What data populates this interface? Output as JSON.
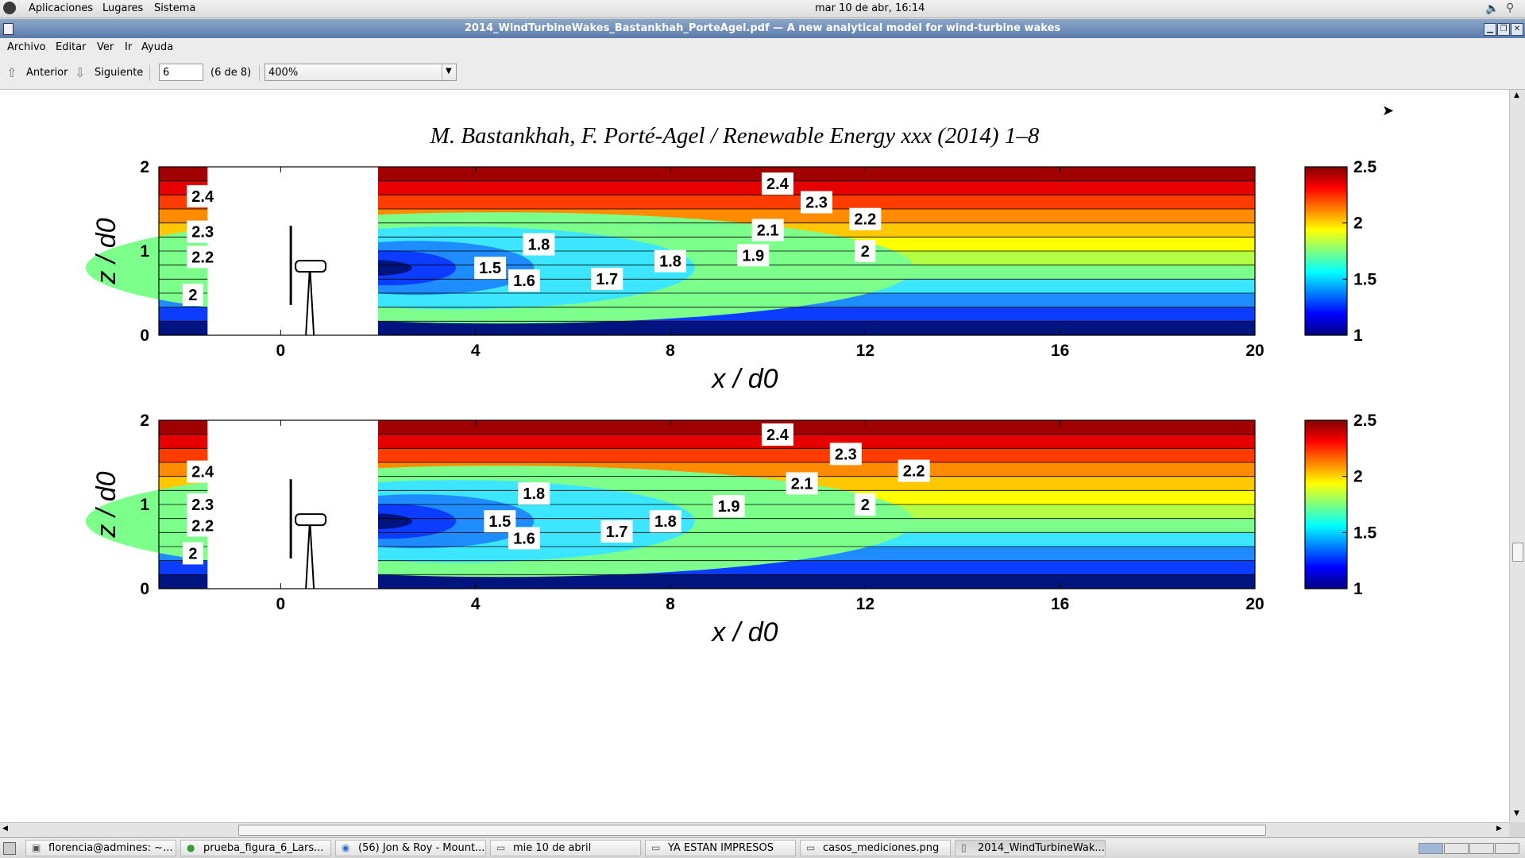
{
  "top_panel": {
    "menus": [
      "Aplicaciones",
      "Lugares",
      "Sistema"
    ],
    "clock": "mar 10 de abr, 16:14",
    "icons": [
      "gnome-foot-icon",
      "volume-icon",
      "search-icon"
    ]
  },
  "window": {
    "title": "2014_WindTurbineWakes_Bastankhah_PorteAgel.pdf — A new analytical model for wind-turbine wakes"
  },
  "menubar": {
    "items": [
      "Archivo",
      "Editar",
      "Ver",
      "Ir",
      "Ayuda"
    ]
  },
  "toolbar": {
    "prev_label": "Anterior",
    "next_label": "Siguiente",
    "page_value": "6",
    "page_count": "(6 de 8)",
    "zoom_value": "400%"
  },
  "document": {
    "header": "M. Bastankhah, F. Porté-Agel / Renewable Energy xxx (2014) 1–8"
  },
  "chart_data": [
    {
      "type": "heatmap",
      "xlabel": "x / d0",
      "ylabel": "z / d0",
      "xlim": [
        -2.5,
        20
      ],
      "ylim": [
        0,
        2
      ],
      "x_ticks": [
        "0",
        "4",
        "8",
        "12",
        "16",
        "20"
      ],
      "y_ticks": [
        "0",
        "1",
        "2"
      ],
      "colorbar_ticks": [
        "1",
        "1.5",
        "2",
        "2.5"
      ],
      "colorbar_range": [
        1,
        2.5
      ],
      "grid": false,
      "contour_labels": [
        {
          "label": "2.4",
          "x": 10.2,
          "z": 1.8
        },
        {
          "label": "2.3",
          "x": 11.0,
          "z": 1.58
        },
        {
          "label": "2.2",
          "x": 12.0,
          "z": 1.38
        },
        {
          "label": "2.1",
          "x": 10.0,
          "z": 1.25
        },
        {
          "label": "2",
          "x": 12.0,
          "z": 1.0
        },
        {
          "label": "1.9",
          "x": 9.7,
          "z": 0.95
        },
        {
          "label": "1.8",
          "x": 5.3,
          "z": 1.08
        },
        {
          "label": "1.8",
          "x": 8.0,
          "z": 0.88
        },
        {
          "label": "1.7",
          "x": 6.7,
          "z": 0.67
        },
        {
          "label": "1.6",
          "x": 5.0,
          "z": 0.65
        },
        {
          "label": "1.5",
          "x": 4.3,
          "z": 0.8
        },
        {
          "label": "2.4",
          "x": -1.6,
          "z": 1.65
        },
        {
          "label": "2.3",
          "x": -1.6,
          "z": 1.23
        },
        {
          "label": "2.2",
          "x": -1.6,
          "z": 0.93
        },
        {
          "label": "2",
          "x": -1.8,
          "z": 0.48
        }
      ]
    },
    {
      "type": "heatmap",
      "xlabel": "x / d0",
      "ylabel": "z / d0",
      "xlim": [
        -2.5,
        20
      ],
      "ylim": [
        0,
        2
      ],
      "x_ticks": [
        "0",
        "4",
        "8",
        "12",
        "16",
        "20"
      ],
      "y_ticks": [
        "0",
        "1",
        "2"
      ],
      "colorbar_ticks": [
        "1",
        "1.5",
        "2",
        "2.5"
      ],
      "colorbar_range": [
        1,
        2.5
      ],
      "grid": false,
      "contour_labels": [
        {
          "label": "2.4",
          "x": 10.2,
          "z": 1.83
        },
        {
          "label": "2.3",
          "x": 11.6,
          "z": 1.6
        },
        {
          "label": "2.2",
          "x": 13.0,
          "z": 1.4
        },
        {
          "label": "2.1",
          "x": 10.7,
          "z": 1.25
        },
        {
          "label": "2",
          "x": 12.0,
          "z": 1.0
        },
        {
          "label": "1.9",
          "x": 9.2,
          "z": 0.98
        },
        {
          "label": "1.8",
          "x": 5.2,
          "z": 1.13
        },
        {
          "label": "1.8",
          "x": 7.9,
          "z": 0.8
        },
        {
          "label": "1.7",
          "x": 6.9,
          "z": 0.68
        },
        {
          "label": "1.6",
          "x": 5.0,
          "z": 0.6
        },
        {
          "label": "1.5",
          "x": 4.5,
          "z": 0.8
        },
        {
          "label": "2.4",
          "x": -1.6,
          "z": 1.39
        },
        {
          "label": "2.3",
          "x": -1.6,
          "z": 1.0
        },
        {
          "label": "2.2",
          "x": -1.6,
          "z": 0.75
        },
        {
          "label": "2",
          "x": -1.8,
          "z": 0.42
        }
      ]
    }
  ],
  "taskbar": {
    "tasks": [
      "florencia@admines: ~...",
      "prueba_figura_6_Lars...",
      "(56) Jon & Roy - Mount...",
      "mie 10 de abril",
      "YA ESTAN IMPRESOS",
      "casos_mediciones.png",
      "2014_WindTurbineWak..."
    ]
  },
  "colors": {
    "titlebar": "#5a7bab",
    "colormap": [
      "#00007f",
      "#0000ff",
      "#007fff",
      "#00ffff",
      "#7fff7f",
      "#ffff00",
      "#ff7f00",
      "#ff0000",
      "#7f0000"
    ]
  }
}
